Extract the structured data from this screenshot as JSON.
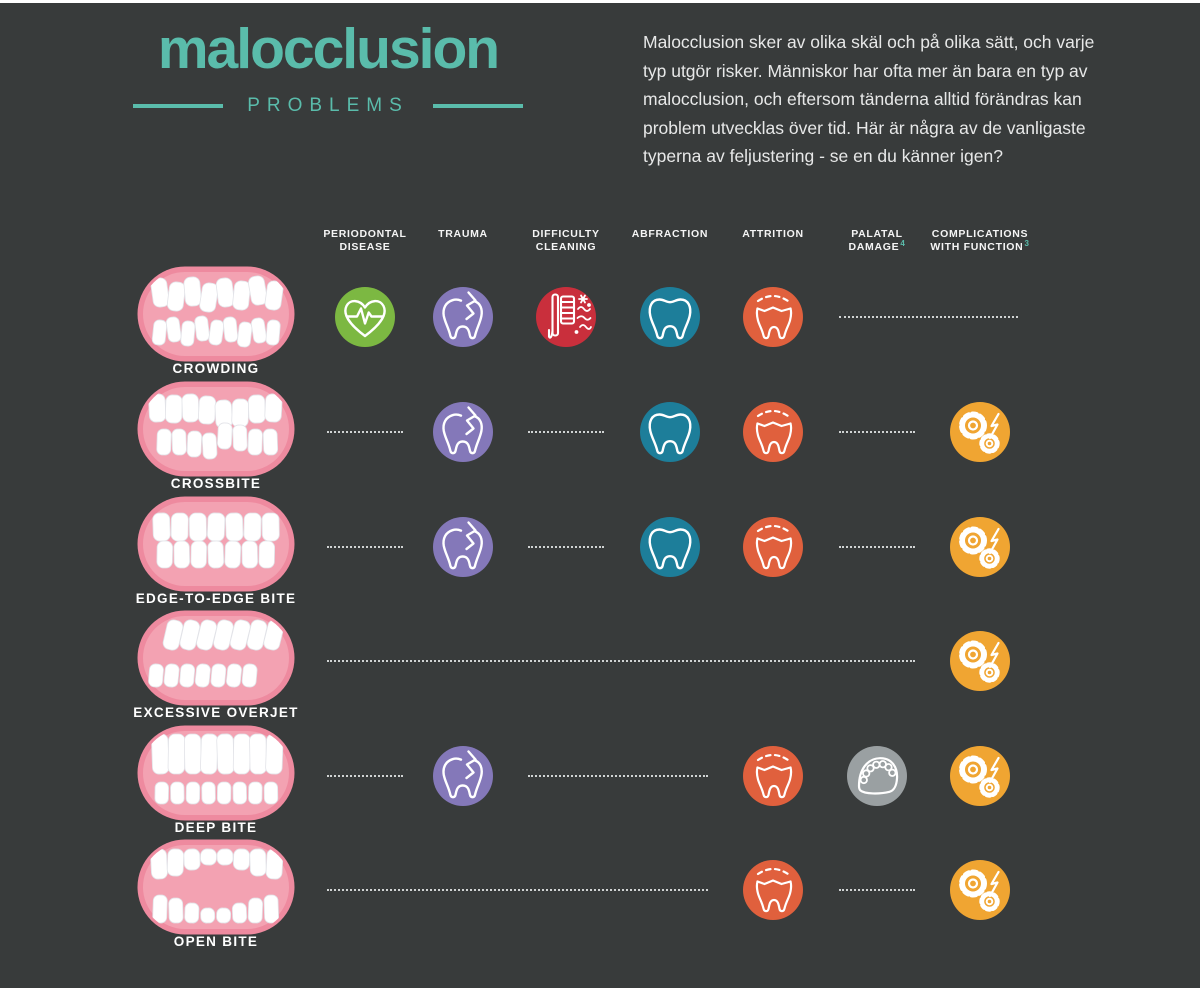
{
  "page": {
    "background": "#383b3b",
    "accent": "#5abcab",
    "top_strip_color": "#ffffff"
  },
  "header": {
    "title": "malocclusion",
    "subtitle": "PROBLEMS",
    "intro": "Malocclusion sker av olika skäl och på olika sätt, och varje typ utgör risker. Människor har ofta mer än bara en typ av malocclusion, och eftersom tänderna alltid förändras kan problem utvecklas över tid. Här är några av de vanligaste typerna av feljustering - se en du känner igen?"
  },
  "table": {
    "columns": [
      {
        "key": "periodontal",
        "lines": [
          "PERIODONTAL",
          "DISEASE"
        ],
        "sup": null
      },
      {
        "key": "trauma",
        "lines": [
          "TRAUMA"
        ],
        "sup": null
      },
      {
        "key": "cleaning",
        "lines": [
          "DIFFICULTY",
          "CLEANING"
        ],
        "sup": null
      },
      {
        "key": "abfraction",
        "lines": [
          "ABFRACTION"
        ],
        "sup": null
      },
      {
        "key": "attrition",
        "lines": [
          "ATTRITION"
        ],
        "sup": null
      },
      {
        "key": "palatal",
        "lines": [
          "PALATAL",
          "DAMAGE"
        ],
        "sup": "4"
      },
      {
        "key": "function",
        "lines": [
          "COMPLICATIONS",
          "WITH FUNCTION"
        ],
        "sup": "3"
      }
    ],
    "icons": {
      "periodontal": {
        "name": "heart-pulse-icon",
        "color": "#7cb842"
      },
      "trauma": {
        "name": "cracked-tooth-icon",
        "color": "#8478b9"
      },
      "cleaning": {
        "name": "toothbrush-germs-icon",
        "color": "#c92f3c"
      },
      "abfraction": {
        "name": "tooth-icon",
        "color": "#1d7e9a"
      },
      "attrition": {
        "name": "worn-tooth-icon",
        "color": "#e0603d"
      },
      "palatal": {
        "name": "palate-icon",
        "color": "#9aa0a2"
      },
      "function": {
        "name": "gears-icon",
        "color": "#f0a532"
      }
    },
    "teeth_colors": {
      "gum_outer": "#ee8a9f",
      "gum_inner": "#f3a2b2",
      "tooth": "#ffffff"
    },
    "rows": [
      {
        "label": "CROWDING",
        "variant": "crowding",
        "cells": [
          "periodontal",
          "trauma",
          "cleaning",
          "abfraction",
          "attrition",
          null,
          null
        ]
      },
      {
        "label": "CROSSBITE",
        "variant": "crossbite",
        "cells": [
          null,
          "trauma",
          null,
          "abfraction",
          "attrition",
          null,
          "function"
        ]
      },
      {
        "label": "EDGE-TO-EDGE BITE",
        "variant": "edgetoedge",
        "cells": [
          null,
          "trauma",
          null,
          "abfraction",
          "attrition",
          null,
          "function"
        ]
      },
      {
        "label": "EXCESSIVE OVERJET",
        "variant": "overjet",
        "cells": [
          null,
          null,
          null,
          null,
          null,
          null,
          "function"
        ]
      },
      {
        "label": "DEEP BITE",
        "variant": "deepbite",
        "cells": [
          null,
          "trauma",
          null,
          null,
          "attrition",
          "palatal",
          "function"
        ]
      },
      {
        "label": "OPEN BITE",
        "variant": "openbite",
        "cells": [
          null,
          null,
          null,
          null,
          "attrition",
          null,
          "function"
        ]
      }
    ]
  }
}
